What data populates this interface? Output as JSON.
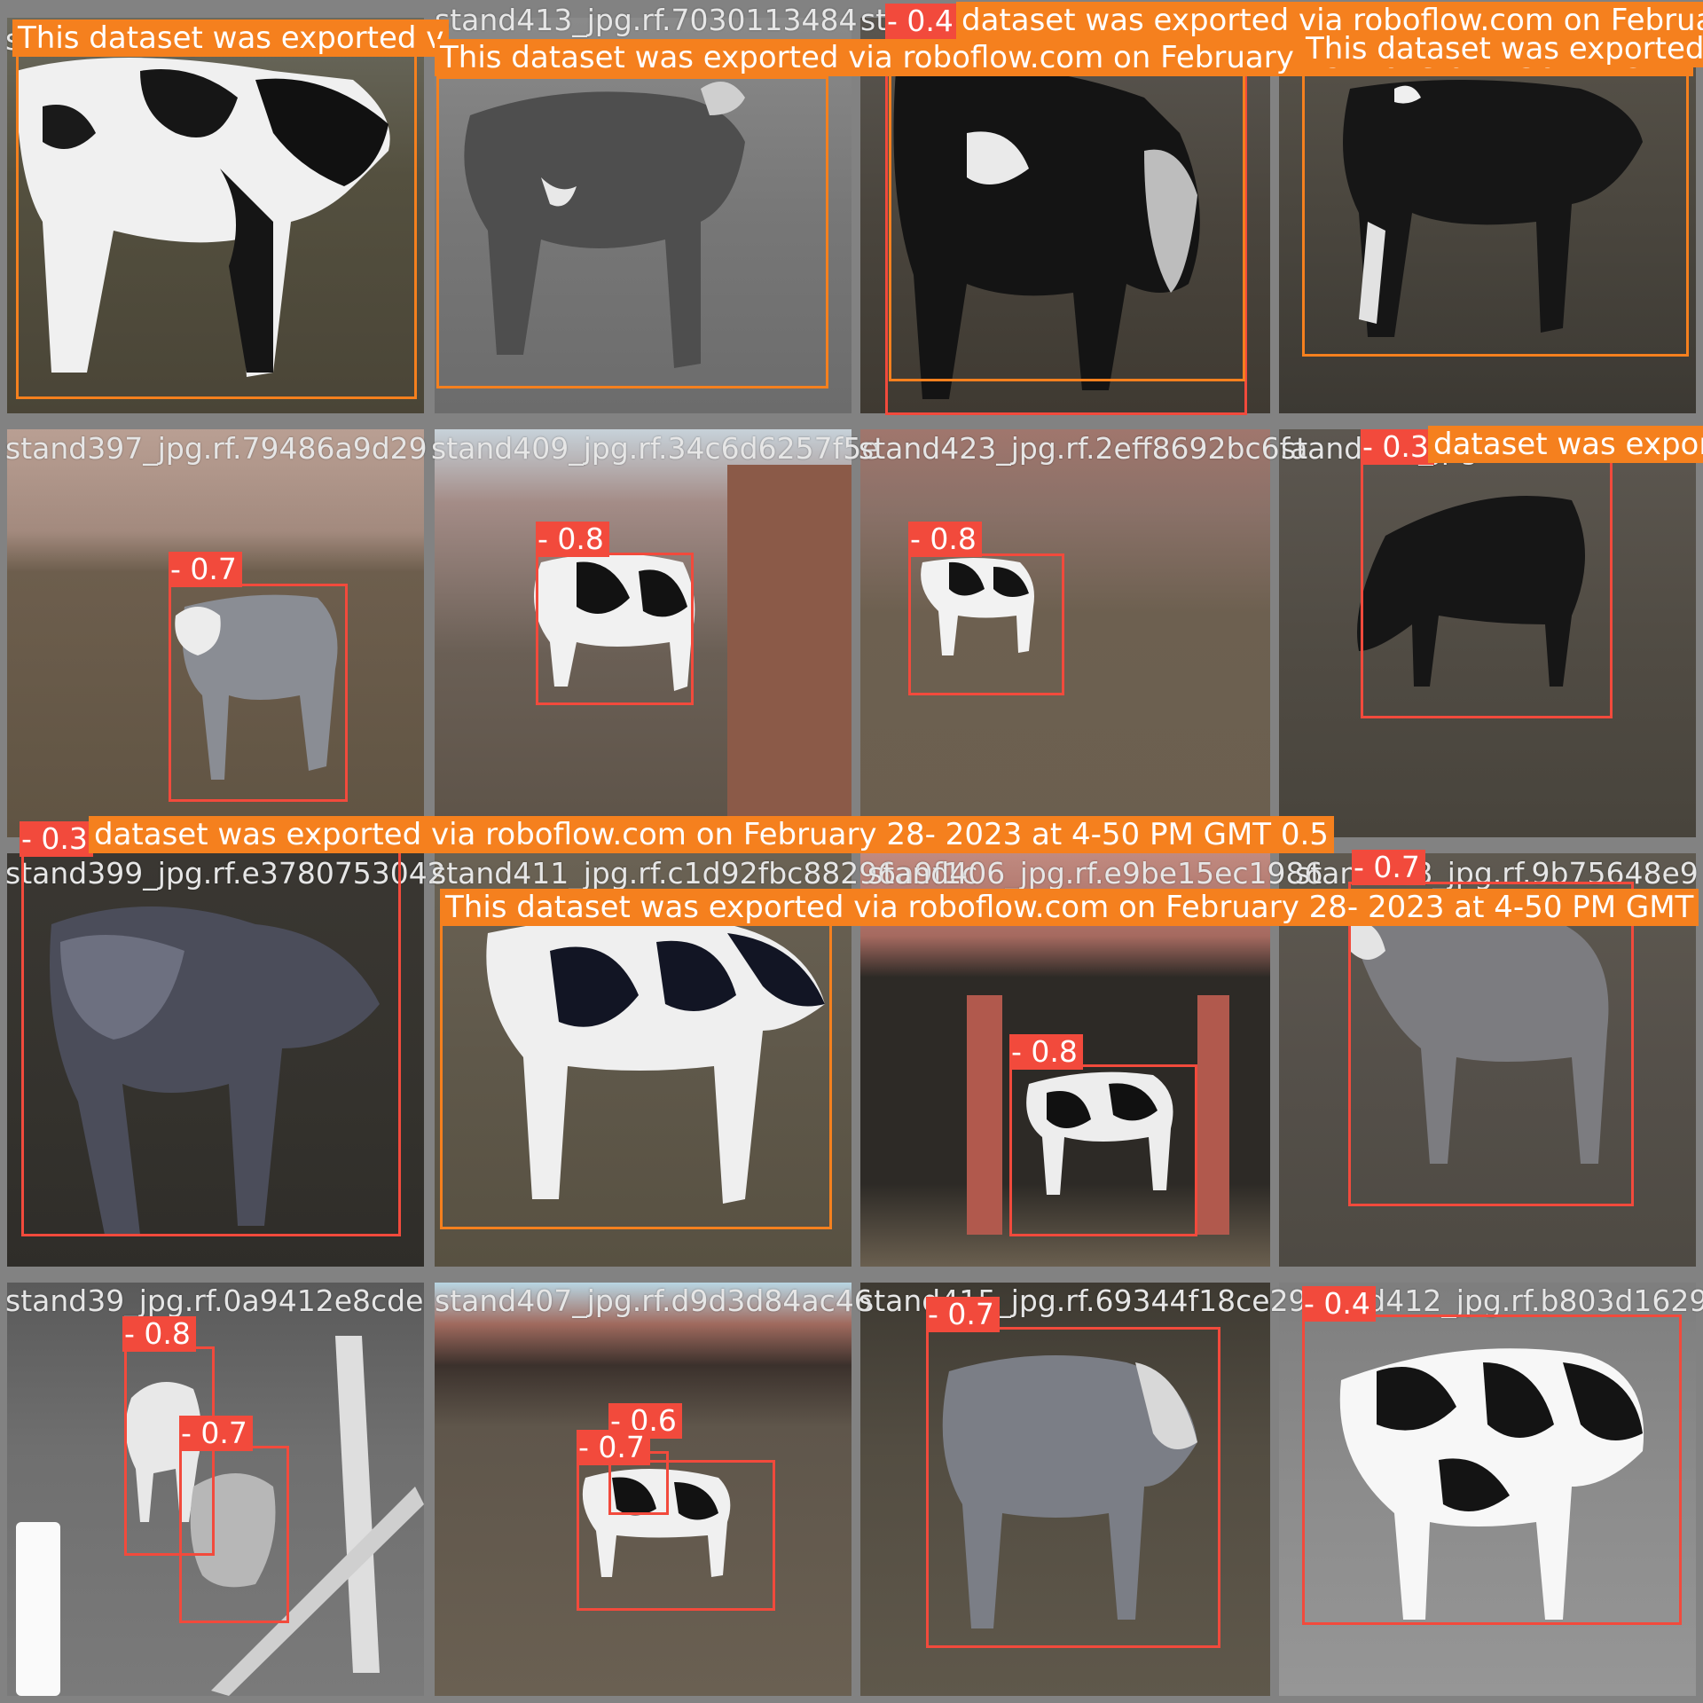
{
  "colors": {
    "grid_bg": "#828282",
    "box_red": "#f24a3c",
    "box_orange": "#f5801e",
    "label_text": "#ffffff",
    "filename_text": "#e6e6e6"
  },
  "tiles": [
    {
      "filename": "stand395_jpg.rf.3bf779c689f"
    },
    {
      "filename": "stand413_jpg.rf.7030113484"
    },
    {
      "filename": "stand403_jpg"
    },
    {
      "filename": "stand402_jpg.rf"
    },
    {
      "filename": "stand397_jpg.rf.79486a9d29"
    },
    {
      "filename": "stand409_jpg.rf.34c6d6257f5e"
    },
    {
      "filename": "stand423_jpg.rf.2eff8692bc6fa"
    },
    {
      "filename": "stand400_jpg.rf"
    },
    {
      "filename": "stand399_jpg.rf.e3780753042"
    },
    {
      "filename": "stand411_jpg.rf.c1d92fbc88296a9f1c"
    },
    {
      "filename": "stand406_jpg.rf.e9be15ec1986"
    },
    {
      "filename": "stand398_jpg.rf.9b75648e9"
    },
    {
      "filename": "stand39_jpg.rf.0a9412e8cde"
    },
    {
      "filename": "stand407_jpg.rf.d9d3d84ac46"
    },
    {
      "filename": "stand415_jpg.rf.69344f18ce29"
    },
    {
      "filename": "stand412_jpg.rf.b803d162962"
    }
  ],
  "detections": [
    {
      "label": "This dataset was exported v"
    },
    {
      "label": "This dataset was exported via roboflow.com on February 28- 2023 at 4-50 PM GMT"
    },
    {
      "label": "- 0.4"
    },
    {
      "label": "dataset was exported via roboflow.com on February"
    },
    {
      "label": "This dataset was exported"
    },
    {
      "label": "- 0.7"
    },
    {
      "label": "- 0.8"
    },
    {
      "label": "- 0.8"
    },
    {
      "label": "- 0.3"
    },
    {
      "label": "dataset was expor"
    },
    {
      "label": "- 0.3"
    },
    {
      "label": "dataset was exported via roboflow.com on February 28- 2023 at 4-50 PM GMT 0.5"
    },
    {
      "label": "This dataset was exported via roboflow.com on February 28- 2023 at 4-50 PM GMT"
    },
    {
      "label": "- 0.8"
    },
    {
      "label": "- 0.7"
    },
    {
      "label": "- 0.8"
    },
    {
      "label": "- 0.7"
    },
    {
      "label": "- 0.6"
    },
    {
      "label": "- 0.7"
    },
    {
      "label": "- 0.7"
    },
    {
      "label": "- 0.4"
    }
  ]
}
